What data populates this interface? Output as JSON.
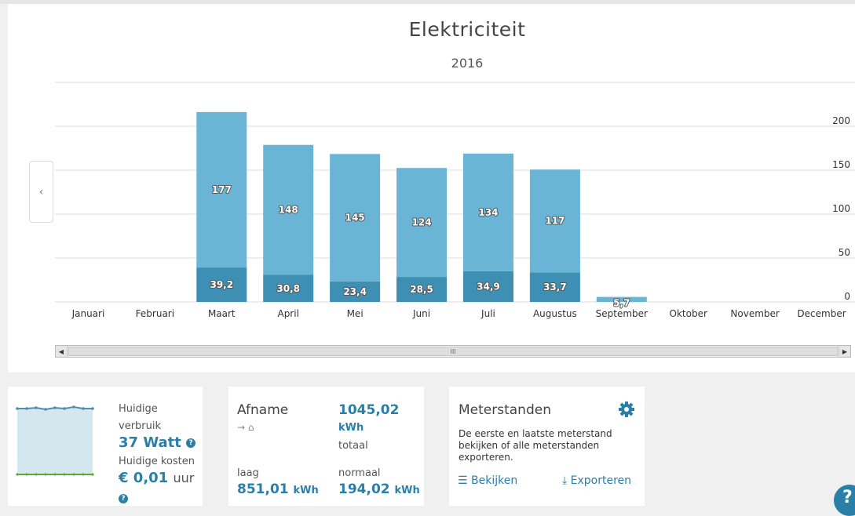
{
  "chart_data": {
    "type": "bar",
    "title": "Elektriciteit",
    "subtitle": "2016",
    "categories": [
      "Januari",
      "Februari",
      "Maart",
      "April",
      "Mei",
      "Juni",
      "Juli",
      "Augustus",
      "September",
      "Oktober",
      "November",
      "December"
    ],
    "series": [
      {
        "values": [
          null,
          null,
          39.2,
          30.8,
          23.4,
          28.5,
          34.9,
          33.7,
          null,
          null,
          null,
          null
        ],
        "labels": [
          null,
          null,
          "39,2",
          "30,8",
          "23,4",
          "28,5",
          "34,9",
          "33,7",
          null,
          null,
          null,
          null
        ],
        "color": "#3d8fb4"
      },
      {
        "values": [
          null,
          null,
          177,
          148,
          145,
          124,
          134,
          117,
          5.7,
          null,
          null,
          null
        ],
        "labels": [
          null,
          null,
          "177",
          "148",
          "145",
          "124",
          "134",
          "117",
          "5,7",
          null,
          null,
          null
        ],
        "color": "#6ab4d6"
      }
    ],
    "stacked": true,
    "ylim": [
      0,
      250
    ],
    "yticks": [
      0,
      50,
      100,
      150,
      200
    ],
    "y_axis_side": "right",
    "grid": true
  },
  "scrollbar": {
    "thumb_grip": "III"
  },
  "nav": {
    "prev_glyph": "‹"
  },
  "current_usage": {
    "label_line1": "Huidige",
    "label_line2": "verbruik",
    "value": "37 Watt",
    "cost_label": "Huidige kosten",
    "cost_value": "€ 0,01",
    "cost_unit": "uur",
    "help_glyph": "?"
  },
  "afname": {
    "title": "Afname",
    "icons": "→ ⌂",
    "total_value": "1045,02",
    "total_unit": "kWh",
    "total_label": "totaal",
    "low_label": "laag",
    "low_value": "851,01",
    "normal_label": "normaal",
    "normal_value": "194,02",
    "unit": "kWh"
  },
  "meterstanden": {
    "title": "Meterstanden",
    "description": "De eerste en laatste meterstand bekijken of alle meterstanden exporteren.",
    "view_label": "Bekijken",
    "export_label": "Exporteren"
  },
  "help_fab": "?",
  "colors": {
    "accent": "#2a7fa8",
    "bar_light": "#6ab4d6",
    "bar_dark": "#3d8fb4"
  }
}
